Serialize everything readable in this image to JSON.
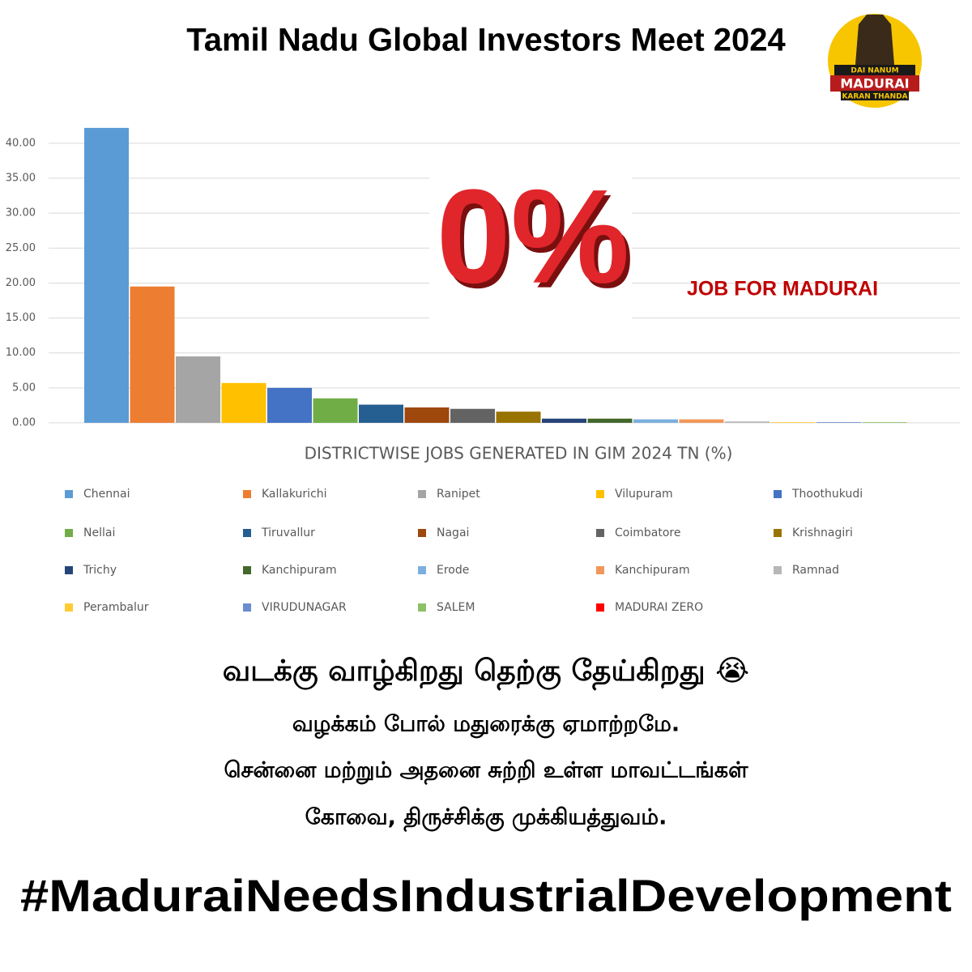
{
  "header": {
    "title": "Tamil Nadu Global Investors Meet 2024",
    "logo": [
      "DAI NANUM",
      "MADURAI",
      "KARAN THANDA"
    ]
  },
  "chart_data": {
    "type": "bar",
    "title": "DISTRICTWISE JOBS GENERATED IN GIM 2024 TN (%)",
    "categories": [
      "Chennai",
      "Kallakurichi",
      "Ranipet",
      "Vilupuram",
      "Thoothukudi",
      "Nellai",
      "Tiruvallur",
      "Nagai",
      "Coimbatore",
      "Krishnagiri",
      "Trichy",
      "Kanchipuram",
      "Erode",
      "Kanchipuram",
      "Ramnad",
      "Perambalur",
      "VIRUDUNAGAR",
      "SALEM",
      "MADURAI ZERO"
    ],
    "values": [
      42.2,
      19.5,
      9.5,
      5.7,
      5.0,
      3.5,
      2.6,
      2.2,
      2.0,
      1.6,
      0.6,
      0.6,
      0.5,
      0.5,
      0.2,
      0.1,
      0.1,
      0.1,
      0
    ],
    "colors": [
      "#5b9bd5",
      "#ed7d31",
      "#a5a5a5",
      "#ffc000",
      "#4472c4",
      "#70ad47",
      "#255e91",
      "#9e480e",
      "#636363",
      "#997300",
      "#264478",
      "#43682b",
      "#7cafdd",
      "#f1975a",
      "#b7b7b7",
      "#ffcd33",
      "#698ed0",
      "#8cc168",
      "#ff0000"
    ],
    "ylim": [
      0,
      43
    ],
    "yticks": [
      {
        "value": 0,
        "label": "0.00"
      },
      {
        "value": 5,
        "label": "5.00"
      },
      {
        "value": 10,
        "label": "10.00"
      },
      {
        "value": 15,
        "label": "15.00"
      },
      {
        "value": 20,
        "label": "20.00"
      },
      {
        "value": 25,
        "label": "25.00"
      },
      {
        "value": 30,
        "label": "30.00"
      },
      {
        "value": 35,
        "label": "35.00"
      },
      {
        "value": 40,
        "label": "40.00"
      }
    ],
    "grid": true,
    "annotations": [
      "0%",
      "JOB FOR MADURAI"
    ]
  },
  "body": {
    "lines": [
      "வடக்கு வாழ்கிறது தெற்கு தேய்கிறது 😭",
      "வழக்கம் போல் மதுரைக்கு ஏமாற்றமே.",
      "சென்னை மற்றும் அதனை சுற்றி உள்ள மாவட்டங்கள்",
      "கோவை, திருச்சிக்கு முக்கியத்துவம்."
    ]
  },
  "footer": {
    "hashtag": "#MaduraiNeedsIndustrialDevelopment"
  }
}
